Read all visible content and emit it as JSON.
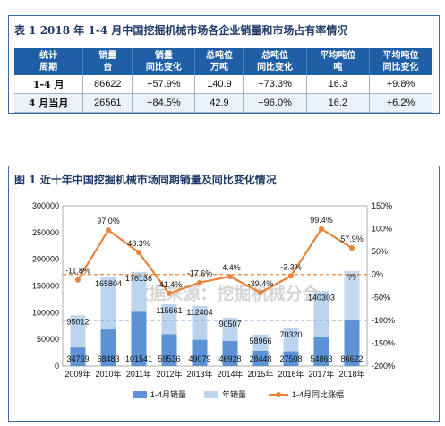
{
  "table": {
    "title": "表 1   2018 年 1-4 月中国挖掘机械市场各企业销量和市场占有率情况",
    "headers": [
      [
        "统计",
        "周期"
      ],
      [
        "销量",
        "台"
      ],
      [
        "销量",
        "同比变化"
      ],
      [
        "总吨位",
        "万吨"
      ],
      [
        "总吨位",
        "同比变化"
      ],
      [
        "平均吨位",
        "吨"
      ],
      [
        "平均吨位",
        "同比变化"
      ]
    ],
    "rows": [
      [
        "1-4 月",
        "86622",
        "+57.9%",
        "140.9",
        "+73.3%",
        "16.3",
        "+9.8%"
      ],
      [
        "4 月当月",
        "26561",
        "+84.5%",
        "42.9",
        "+96.0%",
        "16.2",
        "+6.2%"
      ]
    ]
  },
  "chart_title": "图 1   近十年中国挖掘机械市场同期销量及同比变化情况",
  "watermark": "数据来源：挖掘机械分会",
  "chart_data": {
    "type": "bar",
    "categories": [
      "2009年",
      "2010年",
      "2011年",
      "2012年",
      "2013年",
      "2014年",
      "2015年",
      "2016年",
      "2017年",
      "2018年"
    ],
    "series": [
      {
        "name": "1-4月销量",
        "values": [
          34769,
          68483,
          101541,
          59536,
          49079,
          46928,
          28448,
          27508,
          54863,
          86622
        ],
        "color": "#5b93d5"
      },
      {
        "name": "年销量",
        "values": [
          95012,
          165804,
          176136,
          115661,
          112404,
          90507,
          58966,
          70320,
          140303,
          null
        ],
        "value_labels": [
          "95012",
          "165804",
          "176136",
          "115661",
          "112404",
          "90507",
          "58966",
          "70320",
          "140303",
          "??"
        ],
        "color": "#bcd4ee"
      },
      {
        "name": "1-4月同比涨幅",
        "values": [
          -11.8,
          97.0,
          48.3,
          -41.4,
          -17.6,
          -4.4,
          -39.4,
          -3.3,
          99.4,
          57.9
        ],
        "value_labels": [
          "-11.8%",
          "97.0%",
          "48.3%",
          "-41.4%",
          "-17.6%",
          "-4.4%",
          "-39.4%",
          "-3.3%",
          "99.4%",
          "57.9%"
        ],
        "axis": "right",
        "color": "#e8843a"
      }
    ],
    "y_left": {
      "min": 0,
      "max": 300000,
      "ticks": [
        "0",
        "50000",
        "100000",
        "150000",
        "200000",
        "250000",
        "300000"
      ]
    },
    "y_right": {
      "min": -200,
      "max": 150,
      "ticks": [
        "-200%",
        "-150%",
        "-100%",
        "-50%",
        "0%",
        "50%",
        "100%",
        "150%"
      ]
    },
    "reference_lines": [
      0,
      -100
    ],
    "legend": {
      "position": "bottom",
      "items": [
        "1-4月销量",
        "年销量",
        "1-4月同比涨幅"
      ]
    }
  }
}
